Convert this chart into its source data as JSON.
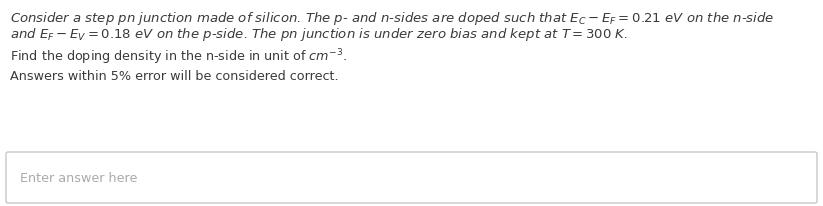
{
  "line1": "Consider a step pn junction made of silicon. The p- and n-sides are doped such that $E_C - E_F = 0.21\\ eV$ on the n-side",
  "line2": "and $E_F - E_V = 0.18\\ eV$ on the p-side. The pn junction is under zero bias and kept at $T = 300\\ K$.",
  "line3": "Find the doping density in the n-side in unit of $cm^{-3}$.",
  "line4": "Answers within 5% error will be considered correct.",
  "placeholder": "Enter answer here",
  "bg_color": "#ffffff",
  "text_color": "#3a3a3a",
  "box_edge_color": "#c8c8c8",
  "placeholder_color": "#aaaaaa",
  "font_size_main": 9.5,
  "font_size_body": 9.2,
  "font_size_placeholder": 9.2
}
